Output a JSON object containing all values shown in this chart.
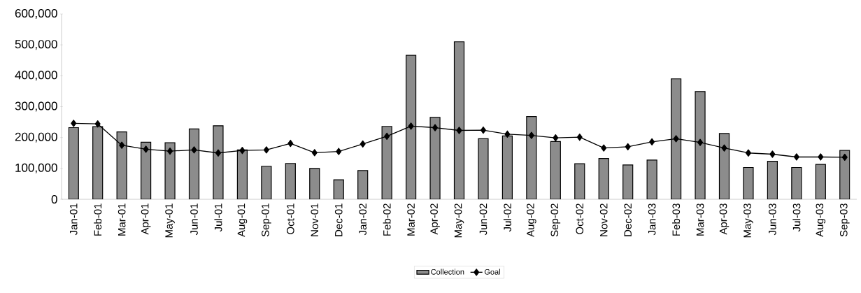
{
  "chart_data": {
    "type": "bar",
    "categories": [
      "Jan-01",
      "Feb-01",
      "Mar-01",
      "Apr-01",
      "May-01",
      "Jun-01",
      "Jul-01",
      "Aug-01",
      "Sep-01",
      "Oct-01",
      "Nov-01",
      "Dec-01",
      "Jan-02",
      "Feb-02",
      "Mar-02",
      "Apr-02",
      "May-02",
      "Jun-02",
      "Jul-02",
      "Aug-02",
      "Sep-02",
      "Oct-02",
      "Nov-02",
      "Dec-02",
      "Jan-03",
      "Feb-03",
      "Mar-03",
      "Apr-03",
      "May-03",
      "Jun-03",
      "Jul-03",
      "Aug-03",
      "Sep-03"
    ],
    "series": [
      {
        "name": "Collection",
        "color": "#8c8c8c",
        "values": [
          232000,
          235000,
          218000,
          185000,
          183000,
          228000,
          238000,
          160000,
          107000,
          116000,
          100000,
          63000,
          93000,
          236000,
          466000,
          265000,
          510000,
          196000,
          205000,
          268000,
          187000,
          115000,
          132000,
          111000,
          127000,
          390000,
          349000,
          213000,
          103000,
          123000,
          103000,
          113000,
          158000
        ]
      },
      {
        "name": "Goal",
        "type": "line",
        "color": "#000000",
        "marker": "diamond",
        "values": [
          246000,
          244000,
          175000,
          162000,
          156000,
          160000,
          150000,
          158000,
          160000,
          181000,
          151000,
          155000,
          179000,
          204000,
          237000,
          232000,
          223000,
          224000,
          211000,
          207000,
          199000,
          201000,
          166000,
          170000,
          186000,
          196000,
          184000,
          166000,
          150000,
          146000,
          137000,
          137000,
          136000
        ]
      }
    ],
    "ylim": [
      0,
      600000
    ],
    "yticks": [
      {
        "value": 0,
        "label": "0"
      },
      {
        "value": 100000,
        "label": "100,000"
      },
      {
        "value": 200000,
        "label": "200,000"
      },
      {
        "value": 300000,
        "label": "300,000"
      },
      {
        "value": 400000,
        "label": "400,000"
      },
      {
        "value": 500000,
        "label": "500,000"
      },
      {
        "value": 600000,
        "label": "600,000"
      }
    ],
    "grid": false,
    "legend": "bottom"
  }
}
